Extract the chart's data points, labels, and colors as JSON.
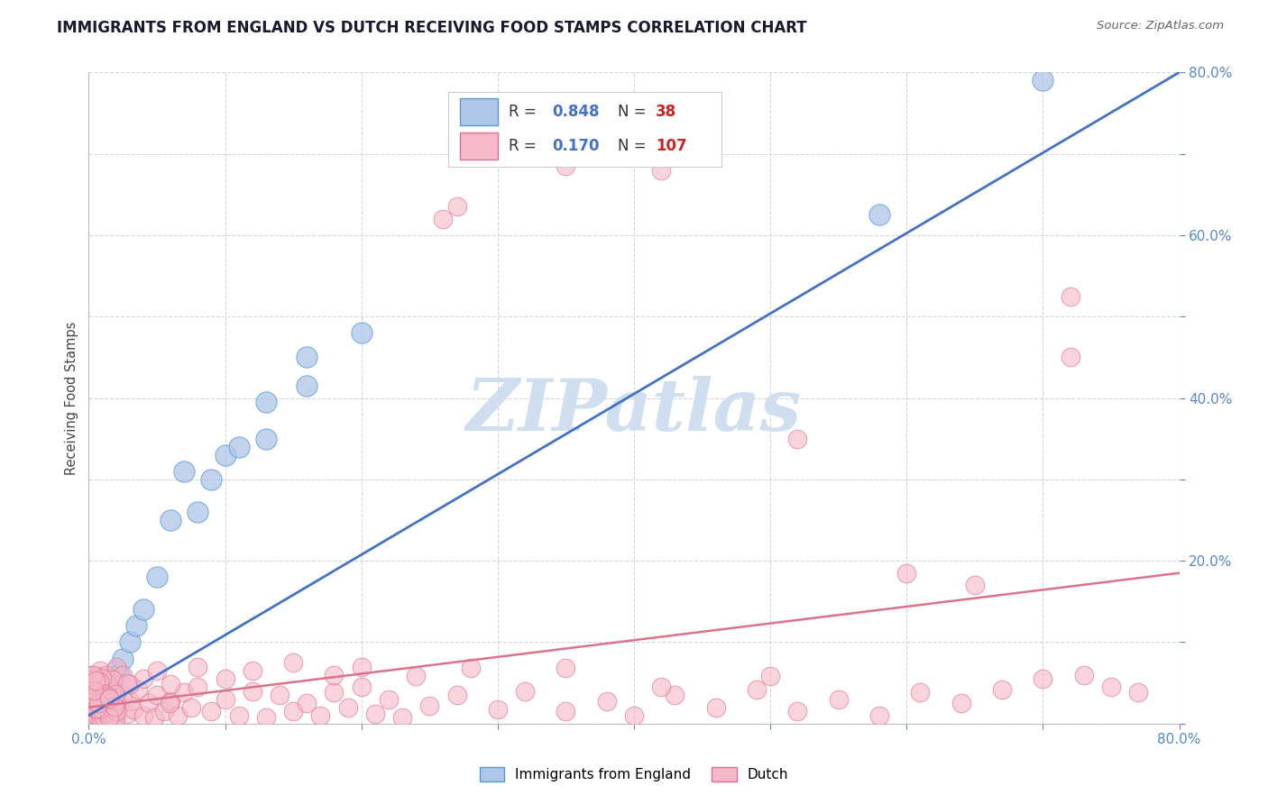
{
  "title": "IMMIGRANTS FROM ENGLAND VS DUTCH RECEIVING FOOD STAMPS CORRELATION CHART",
  "source": "Source: ZipAtlas.com",
  "ylabel": "Receiving Food Stamps",
  "xlim": [
    0.0,
    0.8
  ],
  "ylim": [
    0.0,
    0.8
  ],
  "xticks": [
    0.0,
    0.1,
    0.2,
    0.3,
    0.4,
    0.5,
    0.6,
    0.7,
    0.8
  ],
  "yticks": [
    0.0,
    0.1,
    0.2,
    0.3,
    0.4,
    0.5,
    0.6,
    0.7,
    0.8
  ],
  "england_color": "#aec6e8",
  "england_edge_color": "#5b9bd5",
  "dutch_color": "#f5b8cb",
  "dutch_edge_color": "#e07090",
  "england_line_color": "#4472c4",
  "dutch_line_color": "#d9748a",
  "legend_R_color": "#4472c4",
  "legend_N_color": "#cc2222",
  "watermark_color": "#d0dff0",
  "background_color": "#ffffff",
  "grid_color": "#cccccc",
  "england_R": 0.848,
  "england_N": 38,
  "dutch_R": 0.17,
  "dutch_N": 107,
  "watermark": "ZIPatlas",
  "eng_line_x0": 0.0,
  "eng_line_y0": 0.01,
  "eng_line_x1": 0.8,
  "eng_line_y1": 0.8,
  "dutch_line_x0": 0.0,
  "dutch_line_y0": 0.02,
  "dutch_line_x1": 0.8,
  "dutch_line_y1": 0.185,
  "eng_x": [
    0.002,
    0.003,
    0.004,
    0.005,
    0.006,
    0.007,
    0.008,
    0.009,
    0.01,
    0.011,
    0.012,
    0.013,
    0.014,
    0.015,
    0.016,
    0.017,
    0.018,
    0.019,
    0.02,
    0.022,
    0.025,
    0.03,
    0.035,
    0.04,
    0.05,
    0.06,
    0.07,
    0.08,
    0.09,
    0.1,
    0.11,
    0.13,
    0.16,
    0.2,
    0.13,
    0.16,
    0.58,
    0.7
  ],
  "eng_y": [
    0.008,
    0.018,
    0.012,
    0.025,
    0.02,
    0.03,
    0.022,
    0.035,
    0.04,
    0.028,
    0.038,
    0.045,
    0.032,
    0.055,
    0.048,
    0.042,
    0.058,
    0.035,
    0.065,
    0.06,
    0.08,
    0.1,
    0.12,
    0.14,
    0.18,
    0.25,
    0.31,
    0.26,
    0.3,
    0.33,
    0.34,
    0.35,
    0.45,
    0.48,
    0.395,
    0.415,
    0.625,
    0.79
  ],
  "dutch_x": [
    0.001,
    0.002,
    0.002,
    0.003,
    0.003,
    0.004,
    0.004,
    0.005,
    0.005,
    0.006,
    0.006,
    0.007,
    0.007,
    0.008,
    0.008,
    0.009,
    0.009,
    0.01,
    0.01,
    0.011,
    0.012,
    0.013,
    0.014,
    0.015,
    0.016,
    0.017,
    0.018,
    0.019,
    0.02,
    0.022,
    0.025,
    0.028,
    0.03,
    0.033,
    0.036,
    0.04,
    0.044,
    0.048,
    0.05,
    0.055,
    0.06,
    0.065,
    0.07,
    0.075,
    0.08,
    0.09,
    0.1,
    0.11,
    0.12,
    0.13,
    0.14,
    0.15,
    0.16,
    0.17,
    0.18,
    0.19,
    0.2,
    0.21,
    0.22,
    0.23,
    0.25,
    0.27,
    0.3,
    0.32,
    0.35,
    0.38,
    0.4,
    0.43,
    0.46,
    0.49,
    0.52,
    0.55,
    0.58,
    0.61,
    0.64,
    0.67,
    0.7,
    0.73,
    0.75,
    0.77,
    0.002,
    0.003,
    0.004,
    0.005,
    0.006,
    0.007,
    0.008,
    0.01,
    0.012,
    0.015,
    0.02,
    0.025,
    0.03,
    0.04,
    0.05,
    0.06,
    0.08,
    0.1,
    0.12,
    0.15,
    0.18,
    0.2,
    0.24,
    0.28,
    0.35,
    0.42,
    0.5
  ],
  "dutch_y": [
    0.01,
    0.005,
    0.025,
    0.015,
    0.035,
    0.008,
    0.028,
    0.018,
    0.04,
    0.01,
    0.03,
    0.02,
    0.045,
    0.012,
    0.038,
    0.005,
    0.025,
    0.015,
    0.042,
    0.008,
    0.03,
    0.02,
    0.035,
    0.012,
    0.025,
    0.015,
    0.04,
    0.01,
    0.03,
    0.022,
    0.035,
    0.012,
    0.028,
    0.018,
    0.042,
    0.01,
    0.025,
    0.008,
    0.035,
    0.015,
    0.028,
    0.01,
    0.038,
    0.02,
    0.045,
    0.015,
    0.03,
    0.01,
    0.04,
    0.008,
    0.035,
    0.015,
    0.025,
    0.01,
    0.038,
    0.02,
    0.045,
    0.012,
    0.03,
    0.008,
    0.022,
    0.035,
    0.018,
    0.04,
    0.015,
    0.028,
    0.01,
    0.035,
    0.02,
    0.042,
    0.015,
    0.03,
    0.01,
    0.038,
    0.025,
    0.042,
    0.055,
    0.06,
    0.045,
    0.038,
    0.06,
    0.045,
    0.055,
    0.048,
    0.058,
    0.042,
    0.065,
    0.05,
    0.06,
    0.055,
    0.07,
    0.06,
    0.048,
    0.055,
    0.065,
    0.048,
    0.07,
    0.055,
    0.065,
    0.075,
    0.06,
    0.07,
    0.058,
    0.068,
    0.068,
    0.045,
    0.058
  ]
}
